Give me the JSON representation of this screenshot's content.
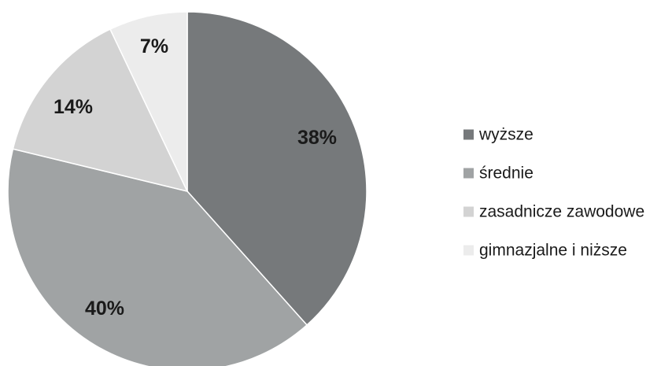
{
  "chart_data": {
    "type": "pie",
    "title": "",
    "categories": [
      "wyższe",
      "średnie",
      "zasadnicze zawodowe",
      "gimnazjalne i niższe"
    ],
    "values": [
      38,
      40,
      14,
      7
    ],
    "labels": [
      "38%",
      "40%",
      "14%",
      "7%"
    ],
    "colors": [
      "#76797b",
      "#a0a3a4",
      "#d3d3d3",
      "#ececec"
    ],
    "start_angle_deg": 0,
    "direction": "clockwise",
    "legend_position": "right"
  }
}
